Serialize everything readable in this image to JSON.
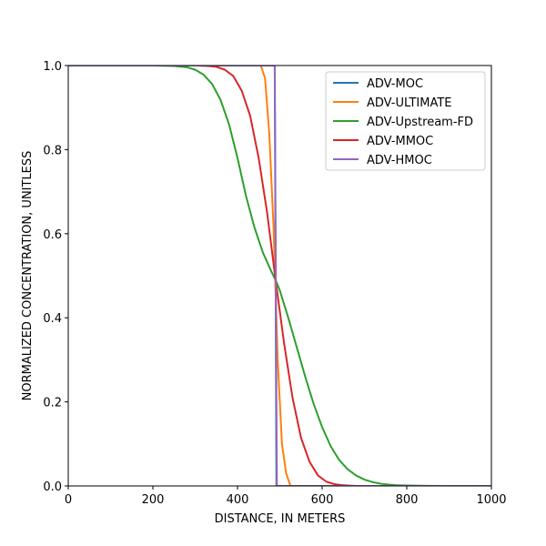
{
  "chart_data": {
    "type": "line",
    "xlabel": "DISTANCE, IN METERS",
    "ylabel": "NORMALIZED CONCENTRATION, UNITLESS",
    "xlim": [
      0,
      1000
    ],
    "ylim": [
      0,
      1
    ],
    "xticks": [
      0,
      200,
      400,
      600,
      800,
      1000
    ],
    "yticks": [
      0.0,
      0.2,
      0.4,
      0.6,
      0.8,
      1.0
    ],
    "xtick_labels": [
      "0",
      "200",
      "400",
      "600",
      "800",
      "1000"
    ],
    "ytick_labels": [
      "0.0",
      "0.2",
      "0.4",
      "0.6",
      "0.8",
      "1.0"
    ],
    "grid": false,
    "legend_position": "top-right",
    "series": [
      {
        "name": "ADV-MOC",
        "color": "#1f77b4",
        "x": [
          0,
          488,
          492,
          1000
        ],
        "y": [
          1.0,
          1.0,
          0.0,
          0.0
        ]
      },
      {
        "name": "ADV-ULTIMATE",
        "color": "#ff7f0e",
        "x": [
          0,
          455,
          465,
          475,
          485,
          495,
          505,
          515,
          525,
          1000
        ],
        "y": [
          1.0,
          1.0,
          0.97,
          0.84,
          0.62,
          0.3,
          0.1,
          0.03,
          0.0,
          0.0
        ]
      },
      {
        "name": "ADV-Upstream-FD",
        "color": "#2ca02c",
        "x": [
          0,
          200,
          250,
          280,
          300,
          320,
          340,
          360,
          380,
          400,
          420,
          440,
          460,
          480,
          490,
          500,
          520,
          540,
          560,
          580,
          600,
          620,
          640,
          660,
          680,
          700,
          720,
          740,
          760,
          780,
          800,
          850,
          900,
          1000
        ],
        "y": [
          1.0,
          1.0,
          0.999,
          0.996,
          0.99,
          0.978,
          0.956,
          0.918,
          0.86,
          0.78,
          0.69,
          0.615,
          0.555,
          0.51,
          0.49,
          0.465,
          0.4,
          0.33,
          0.26,
          0.195,
          0.14,
          0.095,
          0.062,
          0.04,
          0.025,
          0.015,
          0.009,
          0.005,
          0.003,
          0.0015,
          0.001,
          0.0002,
          0.0,
          0.0
        ]
      },
      {
        "name": "ADV-MMOC",
        "color": "#d62728",
        "x": [
          0,
          300,
          330,
          350,
          370,
          390,
          410,
          430,
          450,
          470,
          490,
          510,
          530,
          550,
          570,
          590,
          610,
          630,
          650,
          680,
          1000
        ],
        "y": [
          1.0,
          1.0,
          0.999,
          0.997,
          0.99,
          0.975,
          0.94,
          0.88,
          0.78,
          0.65,
          0.49,
          0.34,
          0.21,
          0.115,
          0.058,
          0.025,
          0.01,
          0.004,
          0.0015,
          0.0,
          0.0
        ]
      },
      {
        "name": "ADV-HMOC",
        "color": "#9467bd",
        "x": [
          0,
          488,
          493,
          1000
        ],
        "y": [
          1.0,
          1.0,
          0.0,
          0.0
        ]
      }
    ]
  }
}
